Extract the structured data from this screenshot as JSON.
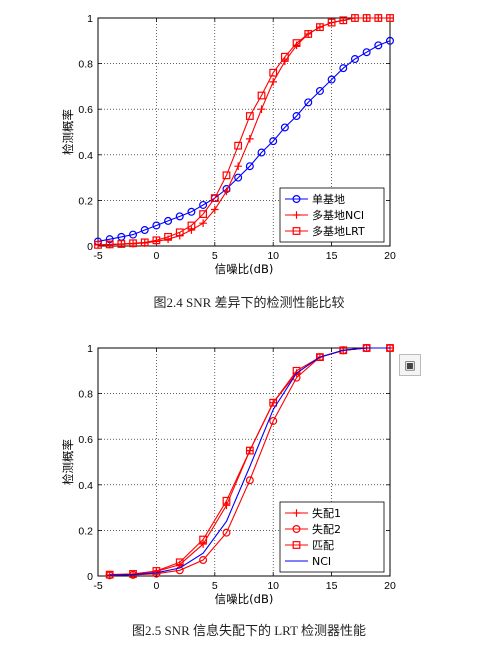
{
  "chart_data": [
    {
      "type": "line",
      "caption": "图2.4  SNR 差异下的检测性能比较",
      "xlabel": "信噪比(dB)",
      "ylabel": "检测概率",
      "xlim": [
        -5,
        20
      ],
      "ylim": [
        0,
        1
      ],
      "xticks": [
        "-5",
        "0",
        "5",
        "10",
        "15",
        "20"
      ],
      "yticks": [
        "0",
        "0.2",
        "0.4",
        "0.6",
        "0.8",
        "1"
      ],
      "grid": true,
      "legend_position": "bottom-right",
      "series": [
        {
          "name": "单基地",
          "color": "#0000ff",
          "marker": "circle",
          "x": [
            -5,
            -4,
            -3,
            -2,
            -1,
            0,
            1,
            2,
            3,
            4,
            5,
            6,
            7,
            8,
            9,
            10,
            11,
            12,
            13,
            14,
            15,
            16,
            17,
            18,
            19,
            20
          ],
          "y": [
            0.02,
            0.03,
            0.04,
            0.05,
            0.07,
            0.09,
            0.11,
            0.13,
            0.15,
            0.18,
            0.21,
            0.25,
            0.3,
            0.35,
            0.41,
            0.46,
            0.52,
            0.57,
            0.63,
            0.68,
            0.73,
            0.78,
            0.82,
            0.85,
            0.88,
            0.9
          ]
        },
        {
          "name": "多基地NCI",
          "color": "#ff0000",
          "marker": "plus",
          "x": [
            -5,
            -4,
            -3,
            -2,
            -1,
            0,
            1,
            2,
            3,
            4,
            5,
            6,
            7,
            8,
            9,
            10,
            11,
            12,
            13,
            14,
            15,
            16,
            17,
            18,
            19,
            20
          ],
          "y": [
            0.005,
            0.006,
            0.008,
            0.01,
            0.013,
            0.02,
            0.03,
            0.045,
            0.07,
            0.1,
            0.16,
            0.24,
            0.35,
            0.47,
            0.6,
            0.72,
            0.81,
            0.88,
            0.93,
            0.96,
            0.98,
            0.99,
            1,
            1,
            1,
            1
          ]
        },
        {
          "name": "多基地LRT",
          "color": "#ff0000",
          "marker": "square",
          "x": [
            -5,
            -4,
            -3,
            -2,
            -1,
            0,
            1,
            2,
            3,
            4,
            5,
            6,
            7,
            8,
            9,
            10,
            11,
            12,
            13,
            14,
            15,
            16,
            17,
            18,
            19,
            20
          ],
          "y": [
            0.005,
            0.007,
            0.009,
            0.012,
            0.016,
            0.025,
            0.04,
            0.06,
            0.09,
            0.14,
            0.21,
            0.31,
            0.44,
            0.57,
            0.66,
            0.76,
            0.83,
            0.89,
            0.93,
            0.96,
            0.98,
            0.99,
            1,
            1,
            1,
            1
          ]
        }
      ]
    },
    {
      "type": "line",
      "caption": "图2.5  SNR 信息失配下的 LRT 检测器性能",
      "xlabel": "信噪比(dB)",
      "ylabel": "检测概率",
      "xlim": [
        -5,
        20
      ],
      "ylim": [
        0,
        1
      ],
      "xticks": [
        "-5",
        "0",
        "5",
        "10",
        "15",
        "20"
      ],
      "yticks": [
        "0",
        "0.2",
        "0.4",
        "0.6",
        "0.8",
        "1"
      ],
      "grid": true,
      "legend_position": "bottom-right",
      "series": [
        {
          "name": "失配1",
          "color": "#ff0000",
          "marker": "plus",
          "x": [
            -4,
            -2,
            0,
            2,
            4,
            6,
            8,
            10,
            12,
            14,
            16,
            18,
            20
          ],
          "y": [
            0.005,
            0.008,
            0.02,
            0.05,
            0.14,
            0.31,
            0.55,
            0.76,
            0.89,
            0.96,
            0.99,
            1,
            1
          ]
        },
        {
          "name": "失配2",
          "color": "#ff0000",
          "marker": "circle",
          "x": [
            -4,
            -2,
            0,
            2,
            4,
            6,
            8,
            10,
            12,
            14,
            16,
            18,
            20
          ],
          "y": [
            0.003,
            0.005,
            0.01,
            0.025,
            0.07,
            0.19,
            0.42,
            0.68,
            0.87,
            0.96,
            0.99,
            1,
            1
          ]
        },
        {
          "name": "匹配",
          "color": "#ff0000",
          "marker": "square",
          "x": [
            -4,
            -2,
            0,
            2,
            4,
            6,
            8,
            10,
            12,
            14,
            16,
            18,
            20
          ],
          "y": [
            0.006,
            0.009,
            0.022,
            0.06,
            0.16,
            0.33,
            0.55,
            0.76,
            0.9,
            0.96,
            0.99,
            1,
            1
          ]
        },
        {
          "name": "NCI",
          "color": "#0000ff",
          "marker": "none",
          "x": [
            -4,
            -2,
            0,
            2,
            4,
            6,
            8,
            10,
            12,
            14,
            16,
            18,
            20
          ],
          "y": [
            0.004,
            0.006,
            0.014,
            0.035,
            0.1,
            0.24,
            0.48,
            0.73,
            0.89,
            0.96,
            0.99,
            1,
            1
          ]
        }
      ]
    }
  ],
  "ui": {
    "side_icon_glyph": "▣"
  }
}
